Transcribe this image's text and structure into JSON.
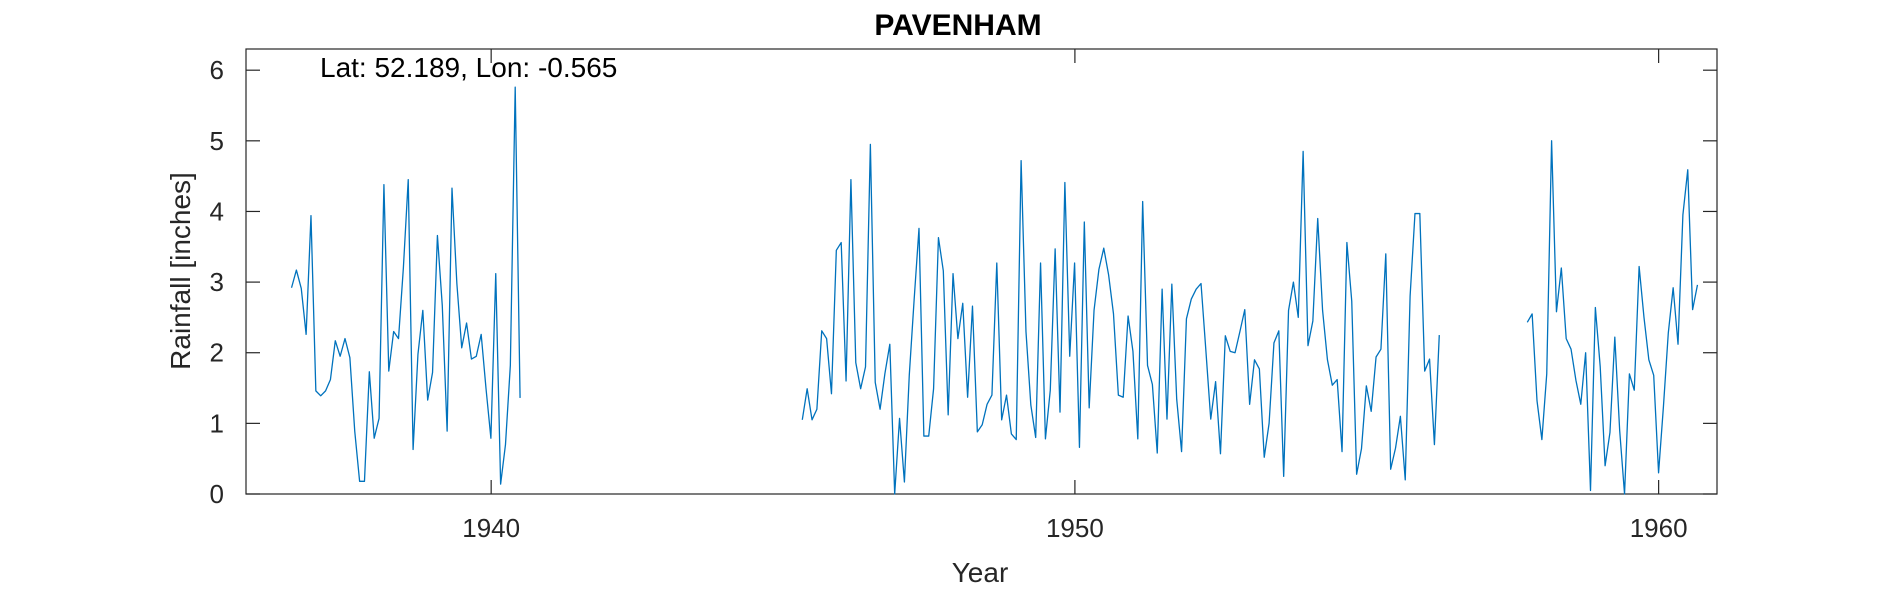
{
  "chart_data": {
    "type": "line",
    "title": "PAVENHAM",
    "xlabel": "Year",
    "ylabel": "Rainfall [inches]",
    "annotation": "Lat: 52.189, Lon: -0.565",
    "xlim": [
      1935.8,
      1961.0
    ],
    "ylim": [
      0,
      6.3
    ],
    "xticks": [
      1940,
      1950,
      1960
    ],
    "yticks": [
      0,
      1,
      2,
      3,
      4,
      5,
      6
    ],
    "grid": false,
    "line_color": "#0072BD",
    "series": [
      {
        "segments": [
          {
            "start_year": 1936.58,
            "step": 0.0833,
            "values": [
              2.92,
              3.17,
              2.91,
              2.26,
              3.94,
              1.46,
              1.39,
              1.46,
              1.62,
              2.17,
              1.95,
              2.2,
              1.93,
              0.89,
              0.18,
              0.18,
              1.73,
              0.79,
              1.07,
              4.38,
              1.74,
              2.3,
              2.2,
              3.2,
              4.45,
              0.63,
              1.98,
              2.6,
              1.33,
              1.72,
              3.66,
              2.67,
              0.89,
              4.33,
              2.98,
              2.07,
              2.42,
              1.91,
              1.95,
              2.26,
              1.49,
              0.79,
              3.12,
              0.14,
              0.7,
              1.82,
              5.76,
              1.36
            ]
          },
          {
            "start_year": 1945.33,
            "step": 0.0833,
            "values": [
              1.05,
              1.49,
              1.05,
              1.2,
              2.31,
              2.2,
              1.42,
              3.45,
              3.56,
              1.6,
              4.45,
              1.86,
              1.49,
              1.8,
              4.95,
              1.58,
              1.2,
              1.71,
              2.12,
              0.0,
              1.07,
              0.17,
              1.68,
              2.75,
              3.76,
              0.82,
              0.82,
              1.49,
              3.63,
              3.16,
              1.12,
              3.12,
              2.2,
              2.7,
              1.37,
              2.66,
              0.88,
              0.98,
              1.27,
              1.4,
              3.27,
              1.05,
              1.4,
              0.85,
              0.77,
              4.72,
              2.3,
              1.26,
              0.8,
              3.27,
              0.78,
              1.47,
              3.47,
              1.16,
              4.41,
              1.95,
              3.27,
              0.66,
              3.85,
              1.22,
              2.6,
              3.18,
              3.48,
              3.1,
              2.55,
              1.4,
              1.37,
              2.52,
              2.02,
              0.78,
              4.14,
              1.82,
              1.55,
              0.58,
              2.9,
              1.06,
              2.97,
              1.34,
              0.6,
              2.48,
              2.76,
              2.9,
              2.98,
              2.03,
              1.06,
              1.59,
              0.57,
              2.24,
              2.02,
              2.0,
              2.3,
              2.61,
              1.27,
              1.9,
              1.77,
              0.52,
              1.0,
              2.14,
              2.31,
              0.25,
              2.6,
              3.0,
              2.5,
              4.85,
              2.1,
              2.45,
              3.9,
              2.6,
              1.9,
              1.54,
              1.62,
              0.6,
              3.56,
              2.73,
              0.28,
              0.64,
              1.53,
              1.17,
              1.94,
              2.05,
              3.4,
              0.35,
              0.65,
              1.1,
              0.2,
              2.8,
              3.97,
              3.97,
              1.74,
              1.91,
              0.7,
              2.25
            ]
          },
          {
            "start_year": 1957.75,
            "step": 0.0833,
            "values": [
              2.43,
              2.55,
              1.32,
              0.77,
              1.7,
              5.0,
              2.58,
              3.2,
              2.2,
              2.05,
              1.61,
              1.27,
              2.0,
              0.05,
              2.64,
              1.8,
              0.4,
              0.87,
              2.22,
              0.9,
              0.0,
              1.7,
              1.47,
              3.22,
              2.5,
              1.9,
              1.68,
              0.3,
              1.24,
              2.28,
              2.92,
              2.12,
              3.95,
              4.59,
              2.61,
              2.96
            ]
          }
        ]
      }
    ]
  }
}
